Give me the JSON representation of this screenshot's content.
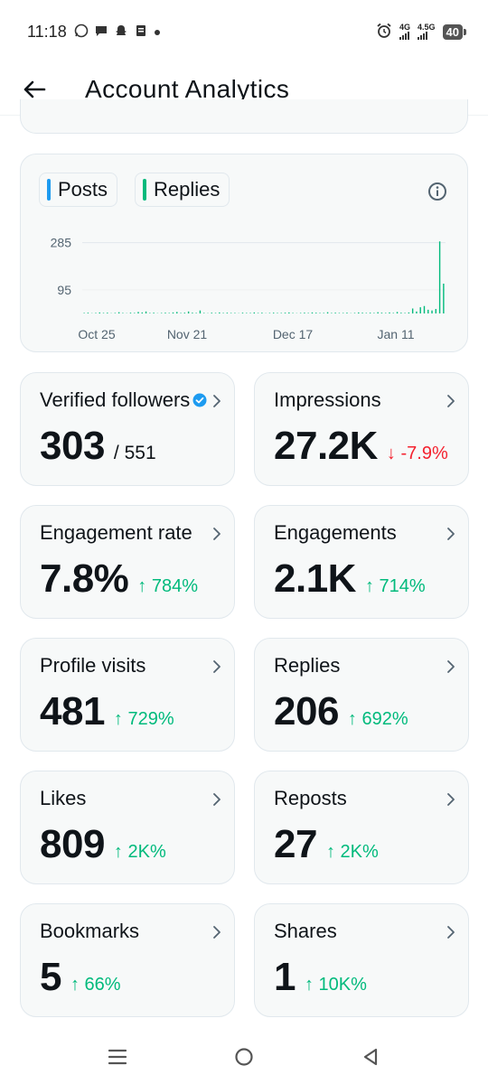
{
  "status_bar": {
    "time": "11:18",
    "left_icons": [
      "whatsapp-icon",
      "chat-icon",
      "snapchat-icon",
      "clipboard-icon",
      "dot-icon"
    ],
    "alarm_icon": "alarm-icon",
    "network1": "4G",
    "network2": "4.5G",
    "battery": "40"
  },
  "header": {
    "back_icon": "arrow-left-icon",
    "title": "Account Analytics"
  },
  "chart_card": {
    "legend": [
      {
        "label": "Posts",
        "color": "#1d9bf0"
      },
      {
        "label": "Replies",
        "color": "#00ba7c"
      }
    ],
    "info_icon": "info-icon"
  },
  "chart_data": {
    "type": "bar",
    "title": "",
    "xlabel": "",
    "ylabel": "",
    "y_ticks": [
      95,
      285
    ],
    "ylim": [
      0,
      320
    ],
    "x_tick_labels": [
      "Oct 25",
      "Nov 21",
      "Dec 17",
      "Jan 11"
    ],
    "grid": "horizontal",
    "legend_position": "top-left",
    "series": [
      {
        "name": "Posts",
        "color": "#1d9bf0",
        "values": [
          0,
          0,
          0,
          0,
          0,
          0,
          0,
          0,
          0,
          0,
          0,
          0,
          0,
          0,
          0,
          0,
          0,
          0,
          0,
          0,
          0,
          0,
          0,
          0,
          0,
          0,
          0,
          0,
          0,
          0,
          0,
          0,
          0,
          0,
          0,
          0,
          0,
          0,
          0,
          0,
          0,
          0,
          0,
          0,
          0,
          0,
          0,
          0,
          0,
          0,
          0,
          0,
          0,
          0,
          0,
          0,
          0,
          0,
          0,
          0,
          0,
          0,
          0,
          0,
          0,
          0,
          0,
          0,
          0,
          0,
          0,
          0,
          0,
          0,
          0,
          0,
          0,
          0,
          0,
          0,
          0,
          0,
          0,
          0,
          0,
          0,
          0,
          0,
          0,
          0,
          0,
          0,
          0,
          0
        ]
      },
      {
        "name": "Replies",
        "color": "#00ba7c",
        "values": [
          2,
          3,
          1,
          2,
          4,
          2,
          3,
          1,
          2,
          5,
          2,
          1,
          3,
          2,
          6,
          4,
          8,
          2,
          3,
          1,
          2,
          3,
          2,
          4,
          6,
          2,
          3,
          8,
          3,
          2,
          12,
          2,
          1,
          3,
          2,
          4,
          2,
          3,
          2,
          2,
          1,
          3,
          2,
          2,
          4,
          2,
          3,
          1,
          2,
          3,
          2,
          2,
          3,
          4,
          2,
          1,
          2,
          3,
          2,
          4,
          3,
          2,
          2,
          5,
          2,
          3,
          2,
          2,
          3,
          1,
          2,
          4,
          3,
          2,
          3,
          2,
          5,
          3,
          2,
          4,
          2,
          6,
          3,
          2,
          4,
          20,
          8,
          25,
          30,
          15,
          12,
          18,
          290,
          120
        ]
      }
    ]
  },
  "metrics": [
    {
      "title": "Verified followers",
      "value": "303",
      "sub": "/ 551",
      "change": "",
      "direction": "",
      "verified": true
    },
    {
      "title": "Impressions",
      "value": "27.2K",
      "sub": "",
      "change": "↓ -7.9%",
      "direction": "down"
    },
    {
      "title": "Engagement rate",
      "value": "7.8%",
      "sub": "",
      "change": "↑ 784%",
      "direction": "up"
    },
    {
      "title": "Engagements",
      "value": "2.1K",
      "sub": "",
      "change": "↑ 714%",
      "direction": "up"
    },
    {
      "title": "Profile visits",
      "value": "481",
      "sub": "",
      "change": "↑ 729%",
      "direction": "up"
    },
    {
      "title": "Replies",
      "value": "206",
      "sub": "",
      "change": "↑ 692%",
      "direction": "up"
    },
    {
      "title": "Likes",
      "value": "809",
      "sub": "",
      "change": "↑ 2K%",
      "direction": "up"
    },
    {
      "title": "Reposts",
      "value": "27",
      "sub": "",
      "change": "↑ 2K%",
      "direction": "up"
    },
    {
      "title": "Bookmarks",
      "value": "5",
      "sub": "",
      "change": "↑ 66%",
      "direction": "up"
    },
    {
      "title": "Shares",
      "value": "1",
      "sub": "",
      "change": "↑ 10K%",
      "direction": "up"
    }
  ],
  "nav_bar": {
    "icons": [
      "menu-icon",
      "home-circle-icon",
      "back-triangle-icon"
    ]
  }
}
